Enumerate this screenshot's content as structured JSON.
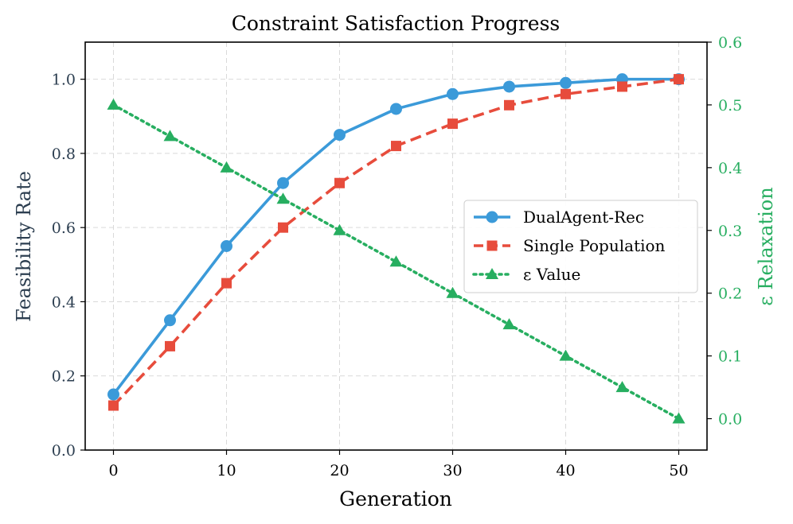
{
  "chart_data": {
    "type": "line",
    "title": "Constraint Satisfaction Progress",
    "xlabel": "Generation",
    "ylabel": "Feasibility Rate",
    "y2label": "ε Relaxation",
    "x": [
      0,
      5,
      10,
      15,
      20,
      25,
      30,
      35,
      40,
      45,
      50
    ],
    "xlim": [
      -2.5,
      52.5
    ],
    "ylim": [
      0,
      1.1
    ],
    "y2lim": [
      -0.05,
      0.6
    ],
    "xticks": [
      "0",
      "10",
      "20",
      "30",
      "40",
      "50"
    ],
    "yticks": [
      "0.0",
      "0.2",
      "0.4",
      "0.6",
      "0.8",
      "1.0"
    ],
    "y2ticks": [
      "0.0",
      "0.1",
      "0.2",
      "0.3",
      "0.4",
      "0.5",
      "0.6"
    ],
    "grid": true,
    "legend_position": "center-right",
    "series": [
      {
        "name": "DualAgent-Rec",
        "axis": "left",
        "color": "#3b9ad9",
        "marker": "circle",
        "linestyle": "solid",
        "values": [
          0.15,
          0.35,
          0.55,
          0.72,
          0.85,
          0.92,
          0.96,
          0.98,
          0.99,
          1.0,
          1.0
        ]
      },
      {
        "name": "Single Population",
        "axis": "left",
        "color": "#e74c3c",
        "marker": "square",
        "linestyle": "dashed",
        "values": [
          0.12,
          0.28,
          0.45,
          0.6,
          0.72,
          0.82,
          0.88,
          0.93,
          0.96,
          0.98,
          1.0
        ]
      },
      {
        "name": "ε Value",
        "axis": "right",
        "color": "#27ae60",
        "marker": "triangle",
        "linestyle": "dotted",
        "values": [
          0.5,
          0.45,
          0.4,
          0.35,
          0.3,
          0.25,
          0.2,
          0.15,
          0.1,
          0.05,
          0.0
        ]
      }
    ],
    "colors": {
      "axis_text": "#2c3e50",
      "right_axis": "#27ae60",
      "grid": "#d9d9d9"
    }
  }
}
